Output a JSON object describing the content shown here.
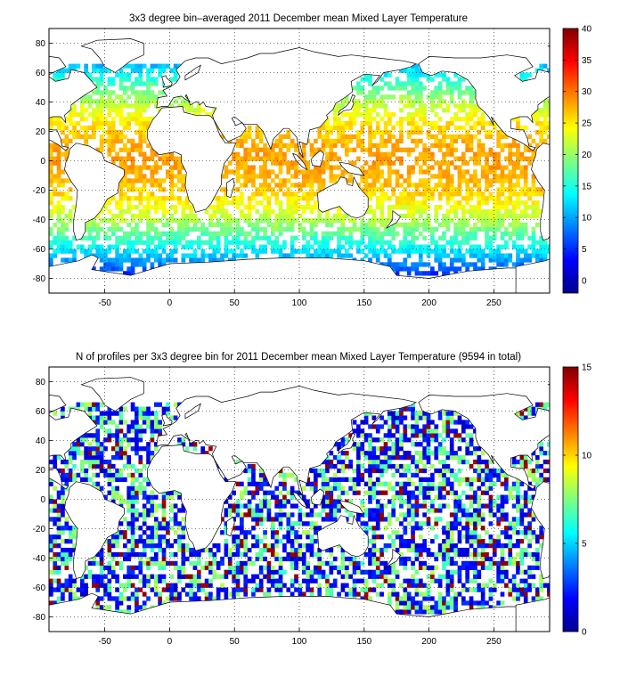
{
  "chart_data": [
    {
      "type": "heatmap",
      "title": "3x3 degree bin–averaged 2011 December mean Mixed Layer Temperature",
      "xlim": [
        -93,
        293
      ],
      "ylim": [
        -90,
        90
      ],
      "xticks": [
        -50,
        0,
        50,
        100,
        150,
        200,
        250
      ],
      "yticks": [
        -80,
        -60,
        -40,
        -20,
        0,
        20,
        40,
        60,
        80
      ],
      "grid": "dotted",
      "colorbar": {
        "min": -2,
        "max": 40,
        "ticks": [
          0,
          5,
          10,
          15,
          20,
          25,
          30,
          35,
          40
        ],
        "colormap": "jet",
        "position": "right"
      },
      "bin_size_deg": 3
    },
    {
      "type": "heatmap",
      "title": "N of profiles per 3x3 degree bin for 2011 December mean Mixed Layer Temperature  (9594 in total)",
      "total_profiles": 9594,
      "xlim": [
        -93,
        293
      ],
      "ylim": [
        -90,
        90
      ],
      "xticks": [
        -50,
        0,
        50,
        100,
        150,
        200,
        250
      ],
      "yticks": [
        -80,
        -60,
        -40,
        -20,
        0,
        20,
        40,
        60,
        80
      ],
      "grid": "dotted",
      "colorbar": {
        "min": 0,
        "max": 15,
        "ticks": [
          0,
          5,
          10,
          15
        ],
        "colormap": "jet",
        "position": "right"
      },
      "bin_size_deg": 3
    }
  ]
}
